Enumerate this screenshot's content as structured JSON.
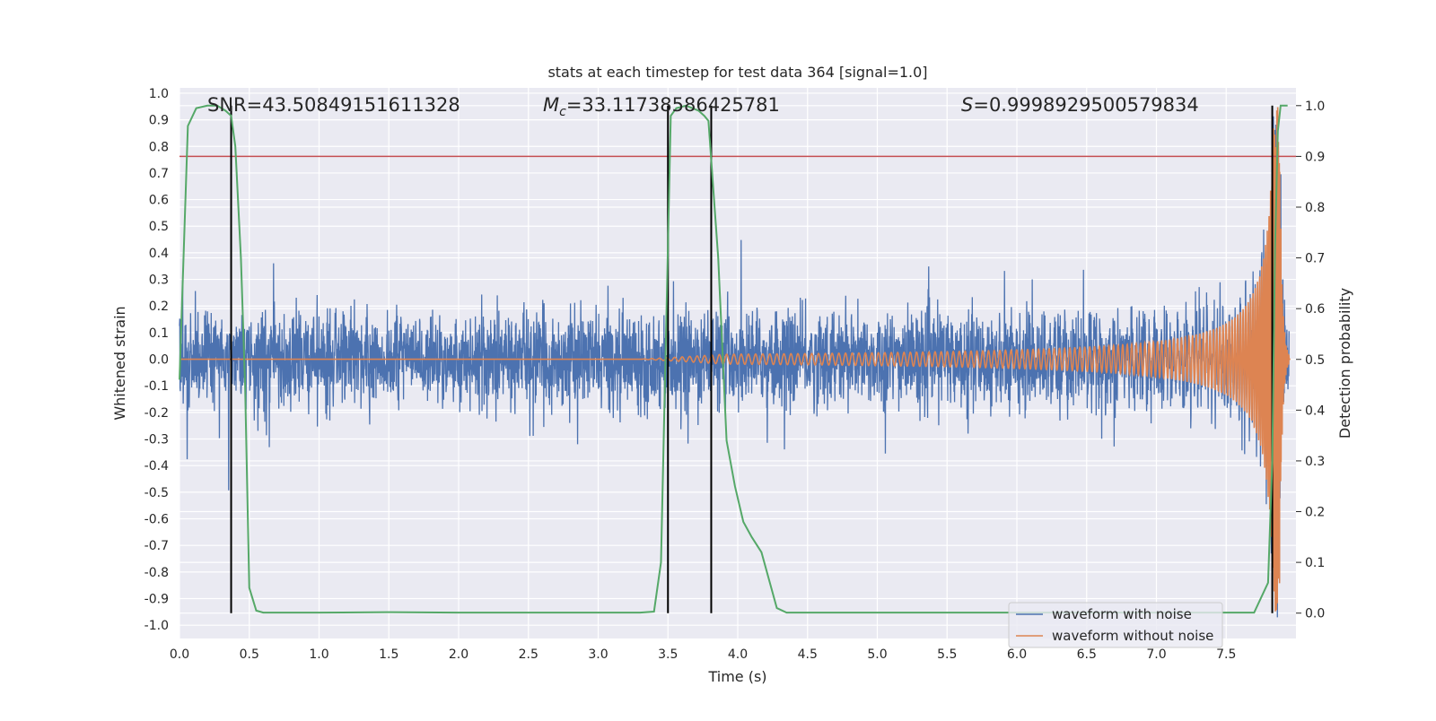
{
  "chart_data": {
    "type": "line",
    "title": "stats at each timestep for test data 364 [signal=1.0]",
    "xlabel": "Time (s)",
    "ylabel": "Whitened strain",
    "y2label": "Detection probability",
    "xlim": [
      0.0,
      8.0
    ],
    "ylim": [
      -1.05,
      1.02
    ],
    "y2lim": [
      -0.05,
      1.035
    ],
    "x_ticks": [
      "0.0",
      "0.5",
      "1.0",
      "1.5",
      "2.0",
      "2.5",
      "3.0",
      "3.5",
      "4.0",
      "4.5",
      "5.0",
      "5.5",
      "6.0",
      "6.5",
      "7.0",
      "7.5"
    ],
    "y_ticks": [
      "1.0",
      "0.9",
      "0.8",
      "0.7",
      "0.6",
      "0.5",
      "0.4",
      "0.3",
      "0.2",
      "0.1",
      "0.0",
      "-0.1",
      "-0.2",
      "-0.3",
      "-0.4",
      "-0.5",
      "-0.6",
      "-0.7",
      "-0.8",
      "-0.9",
      "-1.0"
    ],
    "y2_ticks": [
      "1.0",
      "0.9",
      "0.8",
      "0.7",
      "0.6",
      "0.5",
      "0.4",
      "0.3",
      "0.2",
      "0.1",
      "0.0"
    ],
    "grid": true,
    "legend_position": "bottom-right",
    "annotations": {
      "snr": "SNR=43.50849151611328",
      "mc_symbol": "M",
      "mc_sub": "c",
      "mc_value": "=33.117385864257 81",
      "s_symbol": "S",
      "s_value": "=0.9998929500579834"
    },
    "series": [
      {
        "name": "waveform with noise",
        "color": "#4c72b0",
        "description_axis": "left",
        "amplitude_envelope": [
          {
            "x": 0.0,
            "pos": 0.3,
            "neg": -0.36
          },
          {
            "x": 7.6,
            "pos": 0.35,
            "neg": -0.4
          },
          {
            "x": 7.85,
            "pos": 0.8,
            "neg": -0.9
          }
        ]
      },
      {
        "name": "waveform without noise",
        "color": "#dd8452",
        "description_axis": "left",
        "chirp": {
          "start_x": 3.3,
          "merger_x": 7.88,
          "start_amplitude": 0.005,
          "peak_amplitude": 0.95,
          "ringdown_end_x": 7.95
        }
      },
      {
        "name": "detection probability",
        "color": "#55a868",
        "description_axis": "right",
        "x": [
          0.0,
          0.06,
          0.12,
          0.2,
          0.27,
          0.33,
          0.37,
          0.4,
          0.44,
          0.47,
          0.5,
          0.55,
          0.6,
          1.0,
          1.5,
          2.0,
          2.5,
          3.0,
          3.3,
          3.4,
          3.45,
          3.49,
          3.52,
          3.56,
          3.63,
          3.72,
          3.76,
          3.79,
          3.86,
          3.92,
          3.98,
          4.04,
          4.1,
          4.17,
          4.23,
          4.28,
          4.35,
          4.5,
          5.0,
          6.0,
          7.0,
          7.7,
          7.8,
          7.83,
          7.85,
          7.87,
          7.89,
          7.94
        ],
        "values": [
          0.46,
          0.96,
          0.995,
          1.0,
          1.0,
          0.99,
          0.98,
          0.92,
          0.7,
          0.45,
          0.05,
          0.005,
          0.001,
          0.001,
          0.002,
          0.001,
          0.001,
          0.001,
          0.001,
          0.003,
          0.1,
          0.6,
          0.98,
          0.995,
          1.0,
          0.99,
          0.98,
          0.97,
          0.7,
          0.34,
          0.25,
          0.18,
          0.15,
          0.12,
          0.06,
          0.01,
          0.001,
          0.001,
          0.001,
          0.001,
          0.001,
          0.001,
          0.06,
          0.3,
          0.72,
          0.95,
          1.0,
          1.0
        ]
      }
    ],
    "threshold": {
      "value": 0.9,
      "color": "#c44e52",
      "axis": "right"
    },
    "event_markers_x": [
      0.37,
      3.5,
      3.81,
      7.83
    ],
    "event_marker_color": "#000000"
  }
}
